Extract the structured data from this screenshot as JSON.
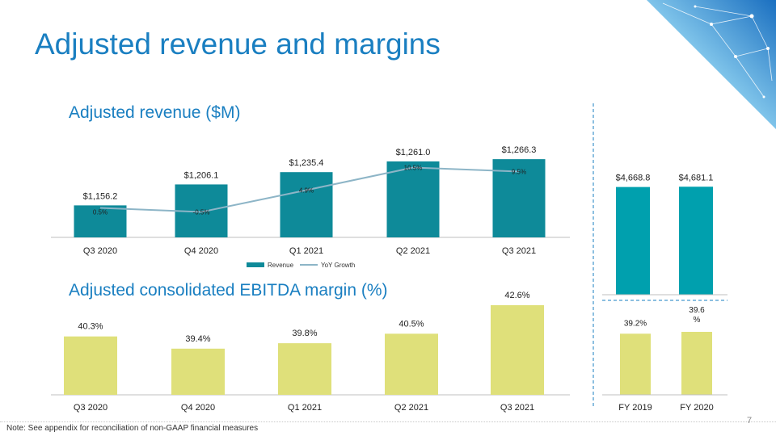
{
  "slide": {
    "title": "Adjusted revenue and margins",
    "footnote": "Note: See appendix for reconciliation of non-GAAP financial measures",
    "page_number": "7"
  },
  "colors": {
    "title": "#1a7fc1",
    "revenue_bar": "#0e8a99",
    "fy_revenue_bar": "#00a0ae",
    "ebitda_bar": "#dfe07a",
    "growth_line": "#8db5c7"
  },
  "chart_data": [
    {
      "type": "bar",
      "title": "Adjusted revenue ($M)",
      "categories": [
        "Q3 2020",
        "Q4 2020",
        "Q1 2021",
        "Q2 2021",
        "Q3 2021"
      ],
      "series": [
        {
          "name": "Revenue",
          "values": [
            1156.2,
            1206.1,
            1235.4,
            1261.0,
            1266.3
          ],
          "labels": [
            "$1,156.2",
            "$1,206.1",
            "$1,235.4",
            "$1,261.0",
            "$1,266.3"
          ]
        },
        {
          "name": "YoY Growth",
          "type": "line",
          "values": [
            0.5,
            -0.5,
            4.9,
            10.5,
            9.5
          ],
          "labels": [
            "0.5%",
            "-0.5%",
            "4.9%",
            "10.5%",
            "9.5%"
          ]
        }
      ],
      "legend": "bottom",
      "grid": false
    },
    {
      "type": "bar",
      "categories": [
        "FY 2019",
        "FY 2020"
      ],
      "series": [
        {
          "name": "Revenue",
          "values": [
            4668.8,
            4681.1
          ],
          "labels": [
            "$4,668.8",
            "$4,681.1"
          ]
        }
      ],
      "grid": false
    },
    {
      "type": "bar",
      "title": "Adjusted consolidated EBITDA margin (%)",
      "categories": [
        "Q3 2020",
        "Q4 2020",
        "Q1 2021",
        "Q2 2021",
        "Q3 2021"
      ],
      "series": [
        {
          "values": [
            40.3,
            39.4,
            39.8,
            40.5,
            42.6
          ],
          "labels": [
            "40.3%",
            "39.4%",
            "39.8%",
            "40.5%",
            "42.6%"
          ]
        }
      ],
      "grid": false
    },
    {
      "type": "bar",
      "categories": [
        "FY 2019",
        "FY 2020"
      ],
      "series": [
        {
          "values": [
            39.2,
            39.6
          ],
          "labels": [
            "39.2%",
            "39.6\n%"
          ]
        }
      ],
      "grid": false
    }
  ]
}
